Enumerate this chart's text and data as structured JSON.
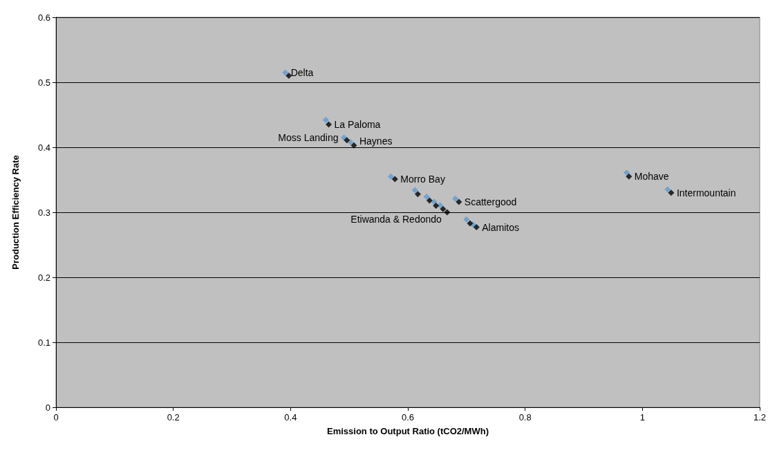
{
  "chart_data": {
    "type": "scatter",
    "xlabel": "Emission to Output Ratio (tCO2/MWh)",
    "ylabel": "Production Efficiency Rate",
    "xlim": [
      0,
      1.2
    ],
    "xticks": [
      0,
      0.2,
      0.4,
      0.6,
      0.8,
      1,
      1.2
    ],
    "ylim": [
      0,
      0.6
    ],
    "yticks": [
      0,
      0.1,
      0.2,
      0.3,
      0.4,
      0.5,
      0.6
    ],
    "grid": "y",
    "marker": "diamond",
    "series": [
      {
        "color": "#5b9bd5",
        "x": [
          0.391,
          0.46,
          0.491,
          0.502,
          0.571,
          0.612,
          0.632,
          0.645,
          0.655,
          0.662,
          0.681,
          0.7,
          0.711,
          0.973,
          1.043
        ],
        "values": [
          0.515,
          0.442,
          0.415,
          0.408,
          0.355,
          0.334,
          0.324,
          0.316,
          0.311,
          null,
          0.321,
          0.289,
          0.281,
          0.361,
          0.335
        ]
      },
      {
        "color": "#000000",
        "x": [
          0.397,
          0.465,
          0.496,
          0.508,
          0.578,
          0.617,
          0.637,
          0.648,
          0.66,
          0.667,
          0.687,
          0.706,
          0.717,
          0.977,
          1.049
        ],
        "values": [
          0.51,
          0.435,
          0.411,
          0.403,
          0.351,
          0.328,
          0.318,
          0.31,
          0.305,
          0.3,
          0.316,
          0.283,
          0.277,
          0.355,
          0.33
        ]
      }
    ],
    "annotations": [
      {
        "text": "Delta",
        "x": 0.391,
        "y": 0.515
      },
      {
        "text": "La Paloma",
        "x": 0.465,
        "y": 0.435
      },
      {
        "text": "Moss Landing",
        "x": 0.491,
        "y": 0.415
      },
      {
        "text": "Haynes",
        "x": 0.508,
        "y": 0.403
      },
      {
        "text": "Morro Bay",
        "x": 0.578,
        "y": 0.351
      },
      {
        "text": "Scattergood",
        "x": 0.687,
        "y": 0.316
      },
      {
        "text": "Etiwanda & Redondo",
        "x": 0.667,
        "y": 0.3
      },
      {
        "text": "Alamitos",
        "x": 0.717,
        "y": 0.277
      },
      {
        "text": "Mohave",
        "x": 0.977,
        "y": 0.355
      },
      {
        "text": "Intermountain",
        "x": 1.049,
        "y": 0.33
      }
    ]
  }
}
